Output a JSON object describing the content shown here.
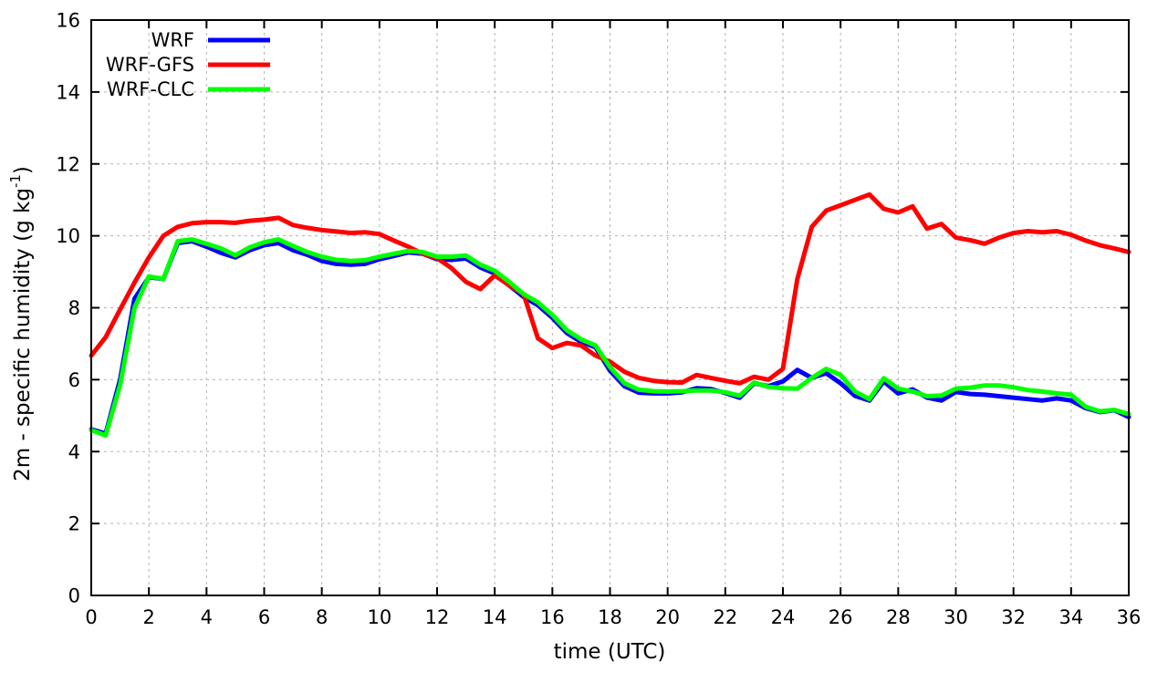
{
  "figure": {
    "background": "#ffffff"
  },
  "legend": {
    "position": "top-left-inside",
    "entries": [
      {
        "label": "WRF",
        "color": "#0000ff"
      },
      {
        "label": "WRF-GFS",
        "color": "#ff0000"
      },
      {
        "label": "WRF-CLC",
        "color": "#00ff00"
      }
    ]
  },
  "chart_data": {
    "type": "line",
    "title": "",
    "xlabel": "time (UTC)",
    "ylabel": "2m - specific humidity (g kg-1)",
    "ylabel_parts": {
      "main": "2m - specific humidity (g kg",
      "sup": "-1",
      "end": ")"
    },
    "xlim": [
      0,
      36
    ],
    "ylim": [
      0,
      16
    ],
    "xticks": [
      0,
      2,
      4,
      6,
      8,
      10,
      12,
      14,
      16,
      18,
      20,
      22,
      24,
      26,
      28,
      30,
      32,
      34,
      36
    ],
    "yticks": [
      0,
      2,
      4,
      6,
      8,
      10,
      12,
      14,
      16
    ],
    "grid": true,
    "x_step": 0.5,
    "series": [
      {
        "name": "WRF",
        "color": "#0000ff",
        "values": [
          4.62,
          4.5,
          6.0,
          8.25,
          8.85,
          8.8,
          9.8,
          9.85,
          9.7,
          9.53,
          9.4,
          9.6,
          9.74,
          9.8,
          9.6,
          9.47,
          9.3,
          9.22,
          9.2,
          9.22,
          9.35,
          9.44,
          9.54,
          9.5,
          9.35,
          9.33,
          9.37,
          9.12,
          8.95,
          8.62,
          8.3,
          8.07,
          7.72,
          7.3,
          7.05,
          6.9,
          6.25,
          5.82,
          5.64,
          5.62,
          5.62,
          5.65,
          5.76,
          5.74,
          5.63,
          5.5,
          5.9,
          5.82,
          5.95,
          6.27,
          6.05,
          6.18,
          5.9,
          5.55,
          5.42,
          5.95,
          5.62,
          5.73,
          5.5,
          5.42,
          5.66,
          5.6,
          5.58,
          5.54,
          5.5,
          5.46,
          5.42,
          5.48,
          5.42,
          5.21,
          5.1,
          5.15,
          4.96
        ]
      },
      {
        "name": "WRF-GFS",
        "color": "#ff0000",
        "values": [
          6.67,
          7.18,
          7.95,
          8.7,
          9.4,
          10.0,
          10.25,
          10.35,
          10.38,
          10.38,
          10.36,
          10.42,
          10.45,
          10.5,
          10.3,
          10.22,
          10.16,
          10.12,
          10.08,
          10.1,
          10.05,
          9.87,
          9.7,
          9.5,
          9.38,
          9.1,
          8.72,
          8.52,
          8.9,
          8.62,
          8.38,
          7.15,
          6.88,
          7.02,
          6.95,
          6.67,
          6.5,
          6.22,
          6.05,
          5.97,
          5.93,
          5.92,
          6.13,
          6.05,
          5.97,
          5.9,
          6.08,
          6.0,
          6.3,
          8.8,
          10.25,
          10.7,
          10.85,
          11.0,
          11.15,
          10.75,
          10.65,
          10.82,
          10.2,
          10.33,
          9.95,
          9.88,
          9.78,
          9.95,
          10.08,
          10.13,
          10.1,
          10.13,
          10.03,
          9.87,
          9.74,
          9.65,
          9.55
        ]
      },
      {
        "name": "WRF-CLC",
        "color": "#00ff00",
        "values": [
          4.6,
          4.45,
          5.85,
          8.0,
          8.87,
          8.8,
          9.85,
          9.9,
          9.78,
          9.65,
          9.46,
          9.68,
          9.82,
          9.9,
          9.72,
          9.55,
          9.42,
          9.33,
          9.3,
          9.32,
          9.42,
          9.5,
          9.58,
          9.55,
          9.42,
          9.42,
          9.45,
          9.2,
          9.03,
          8.72,
          8.38,
          8.15,
          7.8,
          7.38,
          7.12,
          6.95,
          6.35,
          5.9,
          5.72,
          5.68,
          5.67,
          5.68,
          5.7,
          5.7,
          5.65,
          5.55,
          5.92,
          5.8,
          5.76,
          5.75,
          6.05,
          6.3,
          6.13,
          5.67,
          5.46,
          6.04,
          5.75,
          5.67,
          5.54,
          5.56,
          5.75,
          5.78,
          5.84,
          5.84,
          5.79,
          5.71,
          5.67,
          5.62,
          5.58,
          5.25,
          5.12,
          5.16,
          5.04
        ]
      }
    ]
  }
}
